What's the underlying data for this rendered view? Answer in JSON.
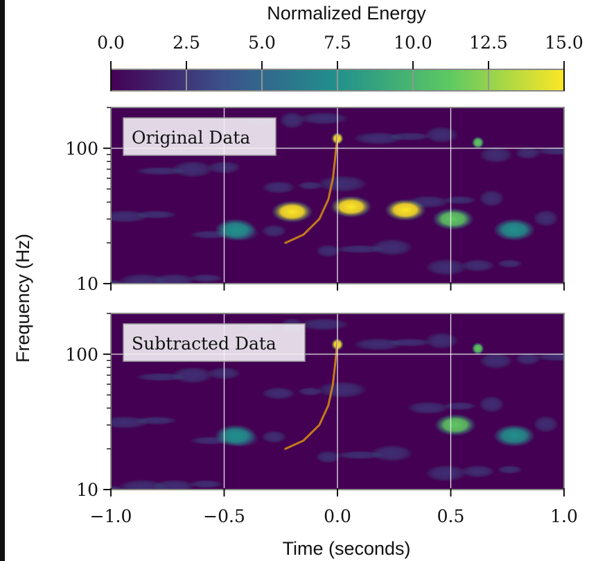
{
  "chart_data": [
    {
      "type": "heatmap",
      "title": "Original Data",
      "colorbar": {
        "label": "Normalized Energy",
        "range": [
          0.0,
          15.0
        ],
        "ticks": [
          "0.0",
          "2.5",
          "5.0",
          "7.5",
          "10.0",
          "12.5",
          "15.0"
        ],
        "colormap": "viridis",
        "colors": [
          "#440154",
          "#3b528b",
          "#21918c",
          "#5ec962",
          "#fde725"
        ]
      },
      "xlabel": "Time (seconds)",
      "ylabel": "Frequency (Hz)",
      "xlim": [
        -1.0,
        1.0
      ],
      "ylim": [
        10,
        200
      ],
      "yscale": "log",
      "xticks": [
        "-1.0",
        "-0.5",
        "0.0",
        "0.5",
        "1.0"
      ],
      "yticks": [
        "10",
        "100"
      ],
      "grid": true,
      "legend": "top-left",
      "blobs": [
        {
          "t": -0.2,
          "f": 34,
          "energy": 15
        },
        {
          "t": 0.06,
          "f": 37,
          "energy": 15
        },
        {
          "t": 0.3,
          "f": 35,
          "energy": 14
        },
        {
          "t": -0.45,
          "f": 25,
          "energy": 8
        },
        {
          "t": 0.51,
          "f": 30,
          "energy": 11
        },
        {
          "t": 0.78,
          "f": 25,
          "energy": 9
        },
        {
          "t": 0.0,
          "f": 118,
          "energy": 15
        },
        {
          "t": 0.62,
          "f": 110,
          "energy": 13
        }
      ],
      "track": {
        "color": "#c47a1a",
        "t": [
          -0.23,
          -0.15,
          -0.08,
          -0.04,
          -0.02,
          -0.01,
          0.0
        ],
        "f": [
          20,
          23,
          30,
          42,
          60,
          85,
          125
        ]
      }
    },
    {
      "type": "heatmap",
      "title": "Subtracted Data",
      "xlabel": "Time (seconds)",
      "ylabel": "Frequency (Hz)",
      "xlim": [
        -1.0,
        1.0
      ],
      "ylim": [
        10,
        200
      ],
      "yscale": "log",
      "xticks": [
        "-1.0",
        "-0.5",
        "0.0",
        "0.5",
        "1.0"
      ],
      "yticks": [
        "10",
        "100"
      ],
      "grid": true,
      "legend": "top-left",
      "blobs": [
        {
          "t": -0.45,
          "f": 25,
          "energy": 9
        },
        {
          "t": 0.52,
          "f": 30,
          "energy": 11
        },
        {
          "t": 0.78,
          "f": 25,
          "energy": 9
        },
        {
          "t": 0.0,
          "f": 118,
          "energy": 15
        },
        {
          "t": 0.62,
          "f": 110,
          "energy": 13
        }
      ],
      "track": {
        "color": "#c47a1a",
        "t": [
          -0.23,
          -0.15,
          -0.08,
          -0.04,
          -0.02,
          -0.01,
          0.0
        ],
        "f": [
          20,
          23,
          30,
          42,
          60,
          85,
          125
        ]
      }
    }
  ]
}
